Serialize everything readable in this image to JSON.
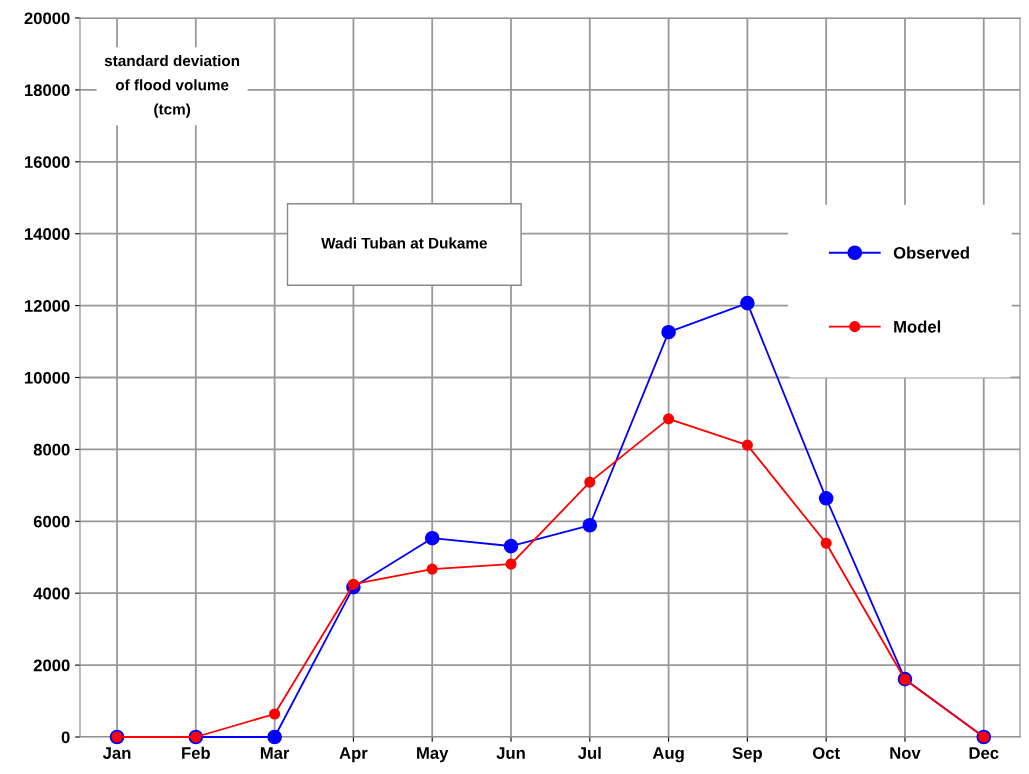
{
  "chart_data": {
    "type": "line",
    "title": "Wadi Tuban at Dukame",
    "ylabel": "standard deviation\nof flood volume\n(tcm)",
    "categories": [
      "Jan",
      "Feb",
      "Mar",
      "Apr",
      "May",
      "Jun",
      "Jul",
      "Aug",
      "Sep",
      "Oct",
      "Nov",
      "Dec"
    ],
    "series": [
      {
        "name": "Observed",
        "color": "#0000ff",
        "values": [
          0,
          0,
          0,
          4170,
          5530,
          5310,
          5890,
          11260,
          12070,
          6640,
          1610,
          0
        ]
      },
      {
        "name": "Model",
        "color": "#ff0000",
        "values": [
          0,
          0,
          640,
          4250,
          4670,
          4810,
          7090,
          8850,
          8120,
          5390,
          1600,
          0
        ]
      }
    ],
    "ylim": [
      0,
      20000
    ],
    "yticks": [
      0,
      2000,
      4000,
      6000,
      8000,
      10000,
      12000,
      14000,
      16000,
      18000,
      20000
    ],
    "grid": true,
    "legend": "right",
    "marker": "circle",
    "line_style": "solid"
  }
}
